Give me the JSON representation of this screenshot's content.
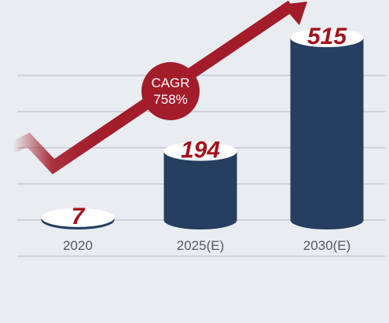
{
  "chart_data": {
    "type": "bar",
    "categories": [
      "2020",
      "2025(E)",
      "2030(E)"
    ],
    "values": [
      7,
      194,
      515
    ],
    "value_labels": [
      "7",
      "194",
      "515"
    ],
    "ylim": [
      0,
      515
    ],
    "grid": true,
    "annotation": {
      "line1": "CAGR",
      "line2": "758%"
    }
  },
  "colors": {
    "background": "#e9ecf1",
    "bar": "#263e5f",
    "bar_top": "#ffffff",
    "accent": "#a31c2a",
    "value_text": "#a5121c",
    "tick_text": "#555b63",
    "grid": "#cdd2d9"
  }
}
